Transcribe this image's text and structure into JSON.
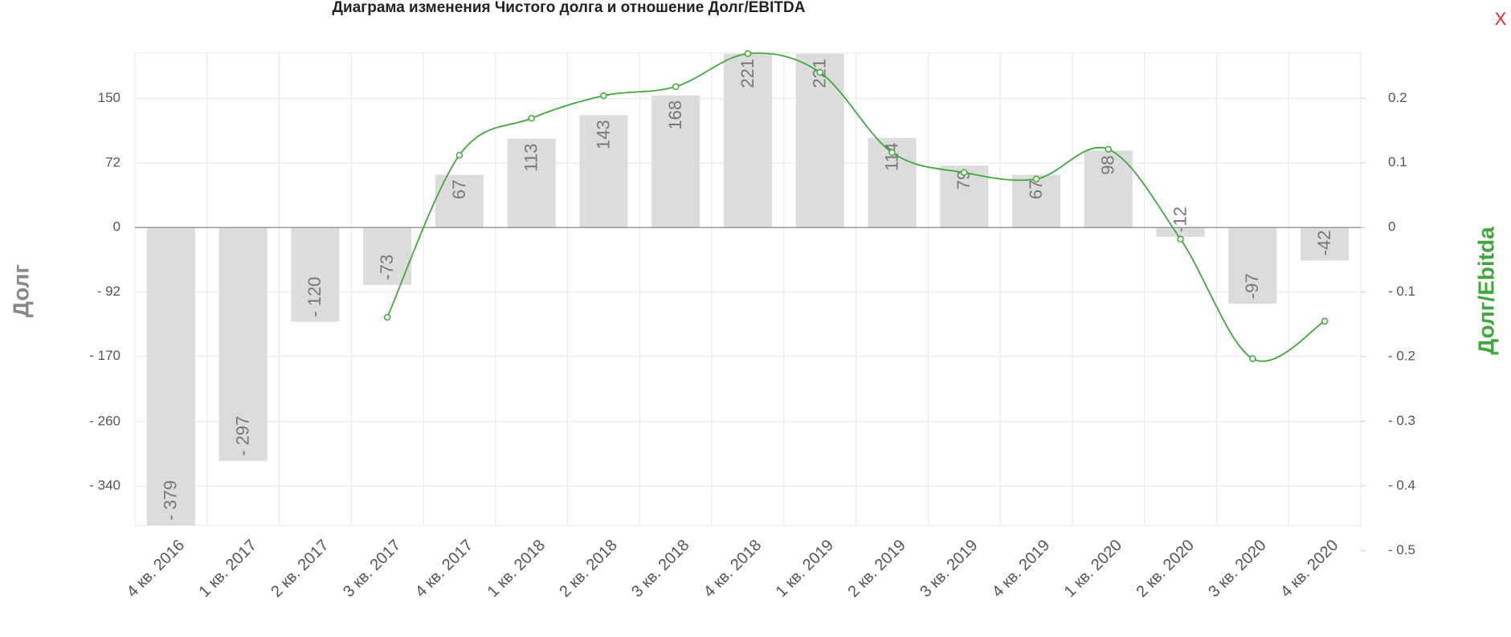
{
  "chart_data": {
    "type": "bar",
    "title": "Диаграма изменения Чистого долга и отношение Долг/EBITDA",
    "close_label": "X",
    "y_label": "Долг",
    "y2_label": "Долг/Ebitda",
    "categories": [
      "4 кв. 2016",
      "1 кв. 2017",
      "2 кв. 2017",
      "3 кв. 2017",
      "4 кв. 2017",
      "1 кв. 2018",
      "2 кв. 2018",
      "3 кв. 2018",
      "4 кв. 2018",
      "1 кв. 2019",
      "2 кв. 2019",
      "3 кв. 2019",
      "4 кв. 2019",
      "1 кв. 2020",
      "2 кв. 2020",
      "3 кв. 2020",
      "4 кв. 2020"
    ],
    "ylim": [
      -379,
      222
    ],
    "yticks": [
      {
        "value": 164,
        "label": "150"
      },
      {
        "value": 82,
        "label": "72"
      },
      0,
      {
        "value": -82,
        "label": "- 92"
      },
      {
        "value": -164,
        "label": "- 170"
      },
      {
        "value": -247,
        "label": "- 260"
      },
      {
        "value": -329,
        "label": "- 340"
      }
    ],
    "y2lim": [
      -0.461,
      0.27
    ],
    "y2ticks": [
      0.2,
      0.1,
      0,
      {
        "value": -0.1,
        "label": "- 0.1"
      },
      {
        "value": -0.2,
        "label": "- 0.2"
      },
      {
        "value": -0.3,
        "label": "- 0.3"
      },
      {
        "value": -0.4,
        "label": "- 0.4"
      },
      {
        "value": -0.5,
        "label": "- 0.5"
      }
    ],
    "grid": true,
    "series": [
      {
        "name": "Долг",
        "type": "bar",
        "color": "#dcdcdc",
        "values": [
          -379,
          -297,
          -120,
          -73,
          67,
          113,
          143,
          168,
          221,
          221,
          114,
          79,
          67,
          98,
          -12,
          -97,
          -42
        ],
        "value_labels": [
          "- 379",
          "- 297",
          "- 120",
          "-73",
          "67",
          "113",
          "143",
          "168",
          "221",
          "221",
          "114",
          "79",
          "67",
          "98",
          "-12",
          "-97",
          "-42"
        ]
      },
      {
        "name": "Долг/Ebitda",
        "type": "line",
        "axis": "y2",
        "color": "#3daa3a",
        "values": [
          null,
          null,
          null,
          -0.139,
          0.112,
          0.169,
          0.204,
          0.218,
          0.269,
          0.24,
          0.116,
          0.085,
          0.075,
          0.121,
          -0.018,
          -0.203,
          -0.145
        ]
      }
    ]
  }
}
